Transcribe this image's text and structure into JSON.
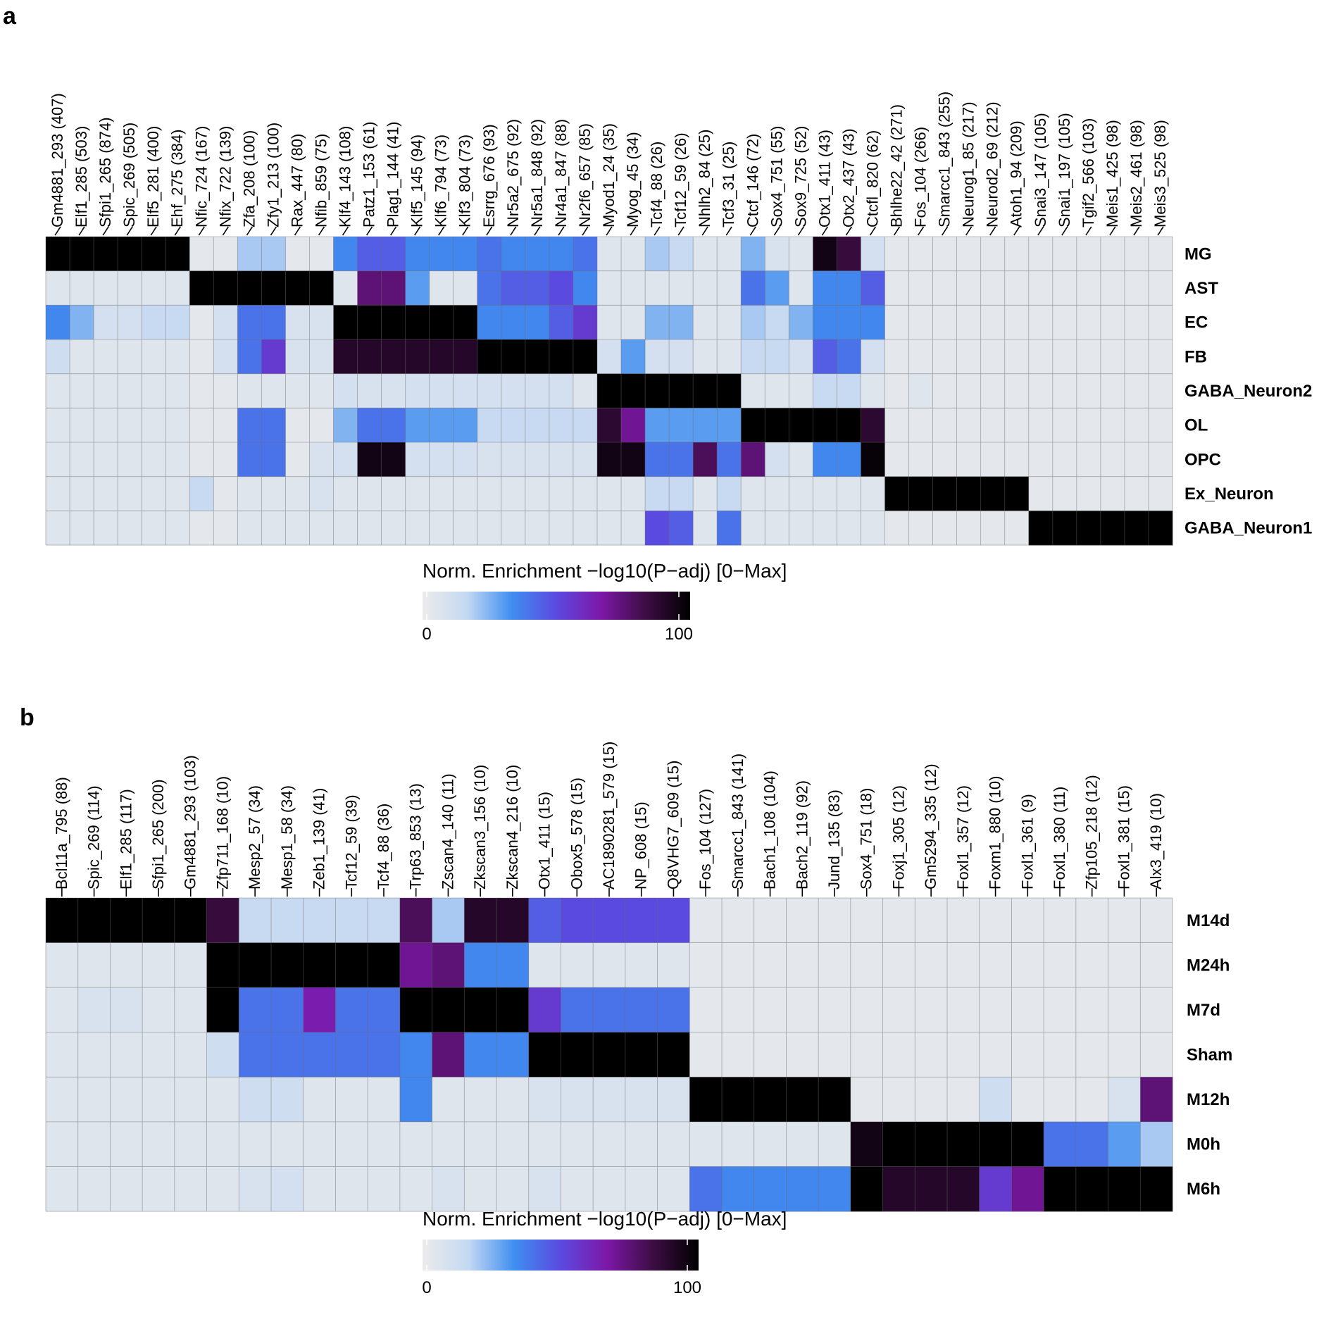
{
  "colors": {
    "gradient": [
      "#ebebeb",
      "#c4d8f2",
      "#3f8ef0",
      "#5b4ae0",
      "#7d18a8",
      "#3d0d44",
      "#000000"
    ],
    "grid": "#6b6b6b",
    "text": "#000000"
  },
  "chart_data": [
    {
      "type": "heatmap",
      "panel": "a",
      "columns": [
        "Gm4881_293 (407)",
        "Elf1_285 (503)",
        "Sfpi1_265 (874)",
        "Spic_269 (505)",
        "Elf5_281 (400)",
        "Ehf_275 (384)",
        "Nfic_724 (167)",
        "Nfix_722 (139)",
        "Zfa_208 (100)",
        "Zfy1_213 (100)",
        "Rax_447 (80)",
        "Nfib_859 (75)",
        "Klf4_143 (108)",
        "Patz1_153 (61)",
        "Plag1_144 (41)",
        "Klf5_145 (94)",
        "Klf6_794 (73)",
        "Klf3_804 (73)",
        "Esrrg_676 (93)",
        "Nr5a2_675 (92)",
        "Nr5a1_848 (92)",
        "Nr4a1_847 (88)",
        "Nr2f6_657 (85)",
        "Myod1_24 (35)",
        "Myog_45 (34)",
        "Tcf4_88 (26)",
        "Tcf12_59 (26)",
        "Nhlh2_84 (25)",
        "Tcf3_31 (25)",
        "Ctcf_146 (72)",
        "Sox4_751 (55)",
        "Sox9_725 (52)",
        "Otx1_411 (43)",
        "Otx2_437 (43)",
        "Ctcfl_820 (62)",
        "Bhlhe22_42 (271)",
        "Fos_104 (266)",
        "Smarcc1_843 (255)",
        "Neurog1_85 (217)",
        "Neurod2_69 (212)",
        "Atoh1_94 (209)",
        "Snai3_147 (105)",
        "Snai1_197 (105)",
        "Tgif2_566 (103)",
        "Meis1_425 (98)",
        "Meis2_461 (98)",
        "Meis3_525 (98)"
      ],
      "rows": [
        "MG",
        "AST",
        "EC",
        "FB",
        "GABA_Neuron2",
        "OL",
        "OPC",
        "Ex_Neuron",
        "GABA_Neuron1"
      ],
      "values": [
        [
          100,
          100,
          100,
          100,
          100,
          100,
          3,
          3,
          20,
          20,
          3,
          3,
          35,
          45,
          45,
          35,
          35,
          35,
          40,
          35,
          35,
          35,
          40,
          5,
          5,
          20,
          15,
          5,
          5,
          25,
          8,
          5,
          95,
          85,
          10,
          3,
          3,
          3,
          3,
          3,
          3,
          3,
          3,
          3,
          3,
          3,
          3
        ],
        [
          5,
          5,
          5,
          5,
          5,
          5,
          100,
          100,
          100,
          100,
          100,
          100,
          5,
          75,
          75,
          30,
          5,
          5,
          40,
          45,
          45,
          50,
          35,
          5,
          5,
          5,
          5,
          5,
          5,
          40,
          30,
          5,
          35,
          35,
          45,
          3,
          3,
          3,
          3,
          3,
          3,
          3,
          3,
          3,
          3,
          3,
          3
        ],
        [
          35,
          25,
          10,
          10,
          15,
          15,
          3,
          10,
          40,
          40,
          8,
          8,
          100,
          100,
          100,
          100,
          100,
          100,
          35,
          35,
          35,
          45,
          55,
          5,
          5,
          25,
          25,
          5,
          5,
          20,
          15,
          25,
          35,
          35,
          35,
          3,
          3,
          3,
          3,
          3,
          3,
          3,
          3,
          3,
          3,
          3,
          3
        ],
        [
          12,
          5,
          5,
          5,
          5,
          5,
          3,
          10,
          40,
          55,
          8,
          8,
          90,
          90,
          90,
          90,
          90,
          90,
          100,
          100,
          100,
          100,
          100,
          10,
          30,
          10,
          10,
          5,
          5,
          15,
          15,
          10,
          45,
          40,
          10,
          3,
          3,
          3,
          3,
          3,
          3,
          3,
          3,
          3,
          3,
          3,
          3
        ],
        [
          5,
          5,
          5,
          5,
          5,
          5,
          3,
          3,
          5,
          5,
          5,
          5,
          10,
          8,
          8,
          10,
          10,
          10,
          10,
          10,
          10,
          10,
          5,
          100,
          100,
          100,
          100,
          100,
          100,
          5,
          5,
          5,
          15,
          15,
          5,
          3,
          5,
          3,
          3,
          3,
          3,
          3,
          3,
          3,
          3,
          3,
          3
        ],
        [
          5,
          5,
          5,
          5,
          5,
          5,
          3,
          3,
          40,
          40,
          3,
          3,
          25,
          40,
          40,
          30,
          30,
          30,
          15,
          15,
          15,
          15,
          15,
          88,
          70,
          30,
          30,
          30,
          30,
          100,
          100,
          100,
          100,
          100,
          88,
          3,
          3,
          3,
          3,
          3,
          3,
          3,
          3,
          3,
          3,
          3,
          3
        ],
        [
          5,
          5,
          5,
          5,
          5,
          5,
          3,
          3,
          40,
          40,
          3,
          8,
          10,
          95,
          95,
          10,
          10,
          10,
          8,
          8,
          8,
          8,
          8,
          95,
          95,
          40,
          40,
          80,
          40,
          75,
          10,
          5,
          35,
          35,
          98,
          3,
          3,
          3,
          3,
          3,
          3,
          3,
          3,
          3,
          3,
          3,
          3
        ],
        [
          5,
          5,
          5,
          5,
          5,
          5,
          15,
          3,
          5,
          5,
          5,
          8,
          5,
          5,
          5,
          5,
          5,
          5,
          5,
          5,
          5,
          5,
          5,
          5,
          5,
          15,
          15,
          5,
          15,
          5,
          5,
          5,
          5,
          5,
          5,
          100,
          100,
          100,
          100,
          100,
          100,
          3,
          3,
          3,
          3,
          3,
          3
        ],
        [
          5,
          5,
          5,
          5,
          5,
          5,
          3,
          3,
          5,
          5,
          5,
          5,
          5,
          5,
          5,
          5,
          5,
          5,
          5,
          5,
          5,
          5,
          5,
          5,
          5,
          50,
          45,
          5,
          40,
          5,
          5,
          5,
          5,
          5,
          5,
          3,
          3,
          3,
          3,
          3,
          3,
          100,
          100,
          100,
          100,
          100,
          100
        ]
      ],
      "legend": {
        "title": "Norm. Enrichment −log10(P−adj) [0−Max]",
        "min_label": "0",
        "max_label": "100",
        "range": [
          0,
          100
        ]
      }
    },
    {
      "type": "heatmap",
      "panel": "b",
      "columns": [
        "Bcl11a_795 (88)",
        "Spic_269 (114)",
        "Elf1_285 (117)",
        "Sfpi1_265 (200)",
        "Gm4881_293 (103)",
        "Zfp711_168 (10)",
        "Mesp2_57 (34)",
        "Mesp1_58 (34)",
        "Zeb1_139 (41)",
        "Tcf12_59 (39)",
        "Tcf4_88 (36)",
        "Trp63_853 (13)",
        "Zscan4_140 (11)",
        "Zkscan3_156 (10)",
        "Zkscan4_216 (10)",
        "Otx1_411 (15)",
        "Obox5_578 (15)",
        "AC1890281_579 (15)",
        "NP_608 (15)",
        "Q8VHG7_609 (15)",
        "Fos_104 (127)",
        "Smarcc1_843 (141)",
        "Bach1_108 (104)",
        "Bach2_119 (92)",
        "Jund_135 (83)",
        "Sox4_751 (18)",
        "Foxj1_305 (12)",
        "Gm5294_335 (12)",
        "Foxl1_357 (12)",
        "Foxm1_880 (10)",
        "Foxl1_361 (9)",
        "Foxl1_380 (11)",
        "Zfp105_218 (12)",
        "Foxl1_381 (15)",
        "Alx3_419 (10)"
      ],
      "rows": [
        "M14d",
        "M24h",
        "M7d",
        "Sham",
        "M12h",
        "M0h",
        "M6h"
      ],
      "values": [
        [
          100,
          100,
          100,
          100,
          100,
          85,
          15,
          15,
          15,
          15,
          15,
          80,
          20,
          90,
          90,
          45,
          50,
          50,
          50,
          50,
          3,
          3,
          3,
          3,
          3,
          3,
          3,
          3,
          3,
          3,
          3,
          3,
          3,
          3,
          3
        ],
        [
          5,
          5,
          5,
          5,
          5,
          100,
          100,
          100,
          100,
          100,
          100,
          70,
          75,
          35,
          35,
          5,
          5,
          5,
          5,
          5,
          3,
          3,
          3,
          3,
          3,
          3,
          3,
          3,
          3,
          3,
          3,
          3,
          3,
          3,
          3
        ],
        [
          5,
          8,
          8,
          5,
          5,
          100,
          40,
          40,
          65,
          40,
          40,
          100,
          100,
          100,
          100,
          55,
          40,
          40,
          40,
          40,
          3,
          3,
          3,
          3,
          3,
          3,
          3,
          3,
          3,
          3,
          3,
          3,
          3,
          3,
          3
        ],
        [
          5,
          5,
          5,
          5,
          5,
          12,
          40,
          40,
          40,
          40,
          40,
          35,
          75,
          35,
          35,
          100,
          100,
          100,
          100,
          100,
          3,
          3,
          3,
          3,
          3,
          3,
          3,
          3,
          3,
          3,
          3,
          3,
          3,
          3,
          3
        ],
        [
          5,
          5,
          5,
          5,
          5,
          5,
          12,
          12,
          5,
          5,
          5,
          35,
          5,
          5,
          5,
          8,
          8,
          8,
          8,
          8,
          100,
          100,
          100,
          100,
          100,
          3,
          3,
          3,
          3,
          12,
          3,
          3,
          3,
          8,
          75
        ],
        [
          5,
          5,
          5,
          5,
          5,
          5,
          5,
          5,
          5,
          5,
          5,
          5,
          5,
          5,
          5,
          5,
          5,
          5,
          5,
          5,
          5,
          5,
          5,
          5,
          5,
          95,
          100,
          100,
          100,
          100,
          100,
          40,
          40,
          30,
          20
        ],
        [
          5,
          5,
          5,
          5,
          5,
          5,
          8,
          10,
          5,
          5,
          5,
          5,
          8,
          5,
          5,
          8,
          5,
          5,
          5,
          5,
          40,
          35,
          35,
          35,
          35,
          100,
          90,
          90,
          90,
          55,
          70,
          100,
          100,
          100,
          100
        ]
      ],
      "legend": {
        "title": "Norm. Enrichment −log10(P−adj) [0−Max]",
        "min_label": "0",
        "max_label": "100",
        "range": [
          0,
          100
        ]
      }
    }
  ],
  "panels": [
    {
      "letter": "a"
    },
    {
      "letter": "b"
    }
  ]
}
